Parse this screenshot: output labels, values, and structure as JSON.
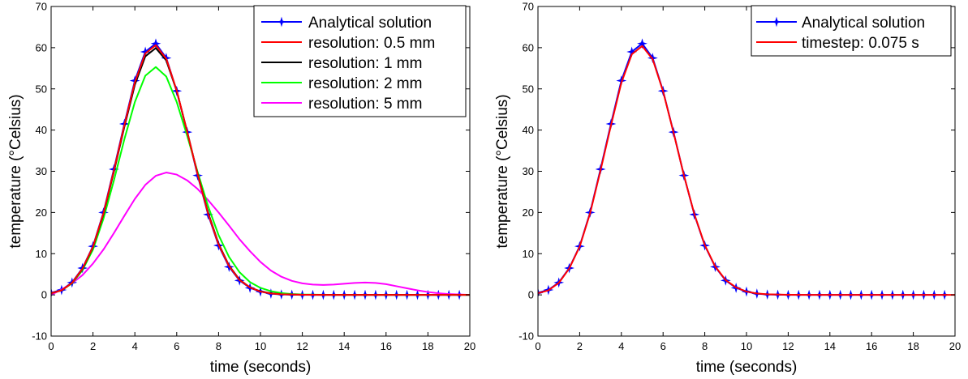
{
  "chart_data": [
    {
      "type": "line",
      "xlabel": "time (seconds)",
      "ylabel": "temperature (°Celsius)",
      "xlim": [
        0,
        20
      ],
      "ylim": [
        -10,
        70
      ],
      "xticks": [
        0,
        2,
        4,
        6,
        8,
        10,
        12,
        14,
        16,
        18,
        20
      ],
      "yticks": [
        -10,
        0,
        10,
        20,
        30,
        40,
        50,
        60,
        70
      ],
      "grid": false,
      "legend_position": "top-right",
      "series": [
        {
          "name": "Analytical solution",
          "color": "#0000ff",
          "marker": "star",
          "x": [
            0,
            0.5,
            1,
            1.5,
            2,
            2.5,
            3,
            3.5,
            4,
            4.5,
            5,
            5.5,
            6,
            6.5,
            7,
            7.5,
            8,
            8.5,
            9,
            9.5,
            10,
            10.5,
            11,
            11.5,
            12,
            12.5,
            13,
            13.5,
            14,
            14.5,
            15,
            15.5,
            16,
            16.5,
            17,
            17.5,
            18,
            18.5,
            19,
            19.5
          ],
          "y": [
            0.5,
            1.2,
            3.0,
            6.5,
            11.8,
            20.0,
            30.5,
            41.5,
            52.0,
            59.0,
            61.0,
            57.5,
            49.5,
            39.5,
            29.0,
            19.5,
            12.0,
            6.8,
            3.5,
            1.7,
            0.8,
            0.3,
            0.1,
            0.05,
            0,
            0,
            0,
            0,
            0,
            0,
            0,
            0,
            0,
            0,
            0,
            0,
            0,
            0,
            0,
            0
          ]
        },
        {
          "name": "resolution: 0.5 mm",
          "color": "#ff0000",
          "x": [
            0,
            0.5,
            1,
            1.5,
            2,
            2.5,
            3,
            3.5,
            4,
            4.5,
            5,
            5.5,
            6,
            6.5,
            7,
            7.5,
            8,
            8.5,
            9,
            9.5,
            10,
            10.5,
            11,
            12,
            13,
            14,
            15,
            16,
            17,
            18,
            19,
            20
          ],
          "y": [
            0.4,
            1.1,
            2.9,
            6.4,
            11.7,
            19.8,
            30.2,
            41.2,
            51.6,
            58.6,
            60.6,
            57.3,
            49.6,
            39.6,
            29.2,
            19.7,
            12.2,
            7.0,
            3.6,
            1.8,
            0.8,
            0.35,
            0.15,
            0.03,
            0,
            0,
            0,
            0,
            0,
            0,
            0,
            0
          ]
        },
        {
          "name": "resolution: 1 mm",
          "color": "#000000",
          "x": [
            0,
            0.5,
            1,
            1.5,
            2,
            2.5,
            3,
            3.5,
            4,
            4.5,
            5,
            5.5,
            6,
            6.5,
            7,
            7.5,
            8,
            8.5,
            9,
            9.5,
            10,
            10.5,
            11,
            12,
            13,
            14,
            15,
            16,
            17,
            18,
            19,
            20
          ],
          "y": [
            0.4,
            1.1,
            2.9,
            6.3,
            11.6,
            19.6,
            29.9,
            40.8,
            51.0,
            57.9,
            59.9,
            56.9,
            49.5,
            39.6,
            29.3,
            19.9,
            12.4,
            7.1,
            3.7,
            1.8,
            0.85,
            0.4,
            0.15,
            0.03,
            0,
            0,
            0,
            0,
            0,
            0,
            0,
            0
          ]
        },
        {
          "name": "resolution: 2 mm",
          "color": "#00ff00",
          "x": [
            0,
            0.5,
            1,
            1.5,
            2,
            2.5,
            3,
            3.5,
            4,
            4.5,
            5,
            5.5,
            6,
            6.5,
            7,
            7.5,
            8,
            8.5,
            9,
            9.5,
            10,
            10.5,
            11,
            11.5,
            12,
            13,
            14,
            15,
            16,
            17,
            18,
            19,
            20
          ],
          "y": [
            0.4,
            1.1,
            2.8,
            6.0,
            11.0,
            18.5,
            27.8,
            37.8,
            46.8,
            53.2,
            55.3,
            53.0,
            46.8,
            38.6,
            29.8,
            21.5,
            14.5,
            9.2,
            5.5,
            3.1,
            1.7,
            0.9,
            0.45,
            0.2,
            0.1,
            0.02,
            0,
            0,
            0,
            0,
            0,
            0,
            0
          ]
        },
        {
          "name": "resolution: 5 mm",
          "color": "#ff00ff",
          "x": [
            0,
            0.5,
            1,
            1.5,
            2,
            2.5,
            3,
            3.5,
            4,
            4.5,
            5,
            5.5,
            6,
            6.5,
            7,
            7.5,
            8,
            8.5,
            9,
            9.5,
            10,
            10.5,
            11,
            11.5,
            12,
            12.5,
            13,
            13.5,
            14,
            14.5,
            15,
            15.5,
            16,
            16.5,
            17,
            17.5,
            18,
            18.5,
            19,
            19.5,
            20
          ],
          "y": [
            0,
            1.3,
            2.8,
            4.8,
            7.6,
            11.0,
            15.0,
            19.2,
            23.3,
            26.7,
            28.9,
            29.7,
            29.2,
            27.8,
            25.7,
            23.0,
            20.0,
            16.8,
            13.5,
            10.6,
            8.0,
            5.9,
            4.4,
            3.4,
            2.8,
            2.5,
            2.4,
            2.5,
            2.7,
            2.9,
            3.0,
            2.9,
            2.6,
            2.1,
            1.6,
            1.1,
            0.7,
            0.4,
            0.2,
            0.1,
            0
          ]
        }
      ]
    },
    {
      "type": "line",
      "xlabel": "time (seconds)",
      "ylabel": "temperature (°Celsius)",
      "xlim": [
        0,
        20
      ],
      "ylim": [
        -10,
        70
      ],
      "xticks": [
        0,
        2,
        4,
        6,
        8,
        10,
        12,
        14,
        16,
        18,
        20
      ],
      "yticks": [
        -10,
        0,
        10,
        20,
        30,
        40,
        50,
        60,
        70
      ],
      "grid": false,
      "legend_position": "top-right",
      "series": [
        {
          "name": "Analytical solution",
          "color": "#0000ff",
          "marker": "star",
          "x": [
            0,
            0.5,
            1,
            1.5,
            2,
            2.5,
            3,
            3.5,
            4,
            4.5,
            5,
            5.5,
            6,
            6.5,
            7,
            7.5,
            8,
            8.5,
            9,
            9.5,
            10,
            10.5,
            11,
            11.5,
            12,
            12.5,
            13,
            13.5,
            14,
            14.5,
            15,
            15.5,
            16,
            16.5,
            17,
            17.5,
            18,
            18.5,
            19,
            19.5
          ],
          "y": [
            0.5,
            1.2,
            3.0,
            6.5,
            11.8,
            20.0,
            30.5,
            41.5,
            52.0,
            59.0,
            61.0,
            57.5,
            49.5,
            39.5,
            29.0,
            19.5,
            12.0,
            6.8,
            3.5,
            1.7,
            0.8,
            0.3,
            0.1,
            0.05,
            0,
            0,
            0,
            0,
            0,
            0,
            0,
            0,
            0,
            0,
            0,
            0,
            0,
            0,
            0,
            0
          ]
        },
        {
          "name": "timestep: 0.075 s",
          "color": "#ff0000",
          "x": [
            0,
            0.5,
            1,
            1.5,
            2,
            2.5,
            3,
            3.5,
            4,
            4.5,
            5,
            5.5,
            6,
            6.5,
            7,
            7.5,
            8,
            8.5,
            9,
            9.5,
            10,
            10.5,
            11,
            12,
            13,
            14,
            15,
            16,
            17,
            18,
            19,
            20
          ],
          "y": [
            0.4,
            1.1,
            2.9,
            6.4,
            11.7,
            19.8,
            30.2,
            41.1,
            51.5,
            58.4,
            60.4,
            57.2,
            49.4,
            39.4,
            29.0,
            19.6,
            12.1,
            6.9,
            3.6,
            1.8,
            0.8,
            0.35,
            0.15,
            0.03,
            0,
            0,
            0,
            0,
            0,
            0,
            0,
            0
          ]
        }
      ]
    }
  ]
}
